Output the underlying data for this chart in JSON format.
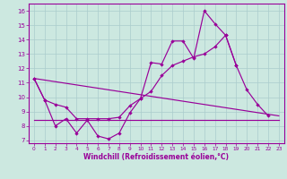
{
  "xlabel": "Windchill (Refroidissement éolien,°C)",
  "background_color": "#cce8e0",
  "grid_color": "#aacccc",
  "line_color": "#990099",
  "x_hours": [
    0,
    1,
    2,
    3,
    4,
    5,
    6,
    7,
    8,
    9,
    10,
    11,
    12,
    13,
    14,
    15,
    16,
    17,
    18,
    19,
    20,
    21,
    22,
    23
  ],
  "series1_y": [
    11.3,
    9.8,
    8.0,
    8.5,
    7.5,
    8.4,
    7.3,
    7.1,
    7.5,
    8.9,
    9.9,
    12.4,
    12.3,
    13.9,
    13.9,
    12.7,
    16.0,
    15.1,
    14.3,
    12.2,
    10.5,
    9.5,
    8.7,
    null
  ],
  "series2_y": [
    11.3,
    null,
    null,
    null,
    null,
    null,
    null,
    null,
    null,
    null,
    null,
    null,
    null,
    null,
    null,
    null,
    null,
    null,
    null,
    null,
    null,
    null,
    null,
    8.7
  ],
  "series3_y": [
    8.4,
    8.4,
    8.4,
    8.4,
    8.4,
    8.4,
    8.4,
    8.4,
    8.4,
    8.4,
    8.4,
    8.4,
    8.4,
    8.4,
    8.4,
    8.4,
    8.4,
    8.4,
    8.4,
    8.4,
    8.4,
    8.4,
    8.4,
    8.4
  ],
  "series4_x": [
    0,
    1,
    2,
    3,
    4,
    5,
    6,
    7,
    8,
    9,
    10,
    11,
    12,
    13,
    14,
    15,
    16,
    17,
    18,
    19
  ],
  "series4_y": [
    11.3,
    9.8,
    9.5,
    9.3,
    8.5,
    8.5,
    8.5,
    8.5,
    8.6,
    9.4,
    9.9,
    10.4,
    11.5,
    12.2,
    12.5,
    12.8,
    13.0,
    13.5,
    14.3,
    12.2
  ],
  "ylim_min": 7,
  "ylim_max": 16,
  "yticks": [
    7,
    8,
    9,
    10,
    11,
    12,
    13,
    14,
    15,
    16
  ],
  "marker": "D",
  "markersize": 2.2,
  "linewidth": 0.85
}
